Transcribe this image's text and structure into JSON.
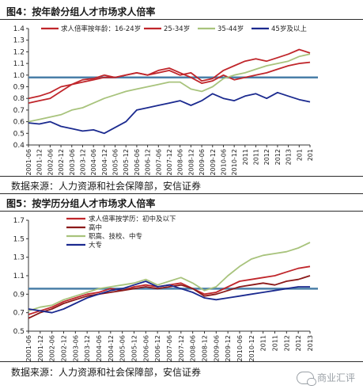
{
  "figures": [
    {
      "title": "图4：按年龄分组人才市场求人倍率",
      "source": "数据来源：人力资源和社会保障部，安信证券"
    },
    {
      "title": "图5：按学历分组人才市场求人倍率",
      "source": "数据来源：人力资源和社会保障部，安信证券"
    }
  ],
  "watermark": "商业汇评",
  "chart_data": [
    {
      "type": "line",
      "title": "图4：按年龄分组人才市场求人倍率",
      "xlabel": "",
      "ylabel": "",
      "ylim": [
        0.4,
        1.4
      ],
      "yticks": [
        "0.4",
        "0.5",
        "0.6",
        "0.7",
        "0.8",
        "0.9",
        "1.0",
        "1.1",
        "1.2",
        "1.3",
        "1.4"
      ],
      "xticks": [
        "2001-06",
        "2001-12",
        "2002-06",
        "2002-12",
        "2003-06",
        "2003-12",
        "2004-06",
        "2004-12",
        "2005-06",
        "2005-12",
        "2006-06",
        "2006-12",
        "2007-06",
        "2007-12",
        "2008-06",
        "2008-12",
        "2009-06",
        "2009-12",
        "2010-06",
        "2010-12",
        "2011",
        "2011",
        "2012",
        "2012",
        "2013",
        "201",
        "201"
      ],
      "reference_line": 0.98,
      "reference_color": "#4a7fa8",
      "legend_position": "top",
      "series": [
        {
          "name": "求人倍率按年龄：16-24岁",
          "color": "#c0262b",
          "values": [
            0.8,
            0.82,
            0.85,
            0.9,
            0.92,
            0.96,
            0.97,
            1.0,
            0.98,
            1.0,
            1.02,
            1.0,
            1.02,
            1.04,
            1.0,
            1.02,
            0.95,
            0.97,
            1.04,
            1.08,
            1.12,
            1.14,
            1.12,
            1.15,
            1.18,
            1.22,
            1.19
          ]
        },
        {
          "name": "25-34岁",
          "color": "#c0262b",
          "values": [
            0.76,
            0.78,
            0.8,
            0.86,
            0.92,
            0.94,
            0.96,
            0.98,
            0.98,
            1.0,
            1.02,
            1.0,
            1.04,
            1.06,
            1.02,
            0.98,
            0.93,
            0.95,
            1.0,
            0.96,
            0.98,
            1.0,
            1.02,
            1.05,
            1.08,
            1.1,
            1.11
          ]
        },
        {
          "name": "35-44岁",
          "color": "#a8c37c",
          "values": [
            0.6,
            0.62,
            0.64,
            0.66,
            0.7,
            0.72,
            0.76,
            0.8,
            0.83,
            0.86,
            0.88,
            0.9,
            0.92,
            0.94,
            0.94,
            0.88,
            0.86,
            0.9,
            0.97,
            1.0,
            1.02,
            1.05,
            1.08,
            1.1,
            1.12,
            1.16,
            1.18
          ]
        },
        {
          "name": "45岁及以上",
          "color": "#1b2a8f",
          "values": [
            0.59,
            0.58,
            0.6,
            0.56,
            0.54,
            0.52,
            0.53,
            0.5,
            0.55,
            0.6,
            0.7,
            0.72,
            0.74,
            0.76,
            0.78,
            0.74,
            0.78,
            0.84,
            0.8,
            0.78,
            0.82,
            0.84,
            0.8,
            0.85,
            0.82,
            0.79,
            0.77
          ]
        }
      ]
    },
    {
      "type": "line",
      "title": "图5：按学历分组人才市场求人倍率",
      "xlabel": "",
      "ylabel": "",
      "ylim": [
        0.5,
        1.7
      ],
      "yticks": [
        "0.5",
        "0.7",
        "0.9",
        "1.1",
        "1.3",
        "1.5",
        "1.7"
      ],
      "xticks": [
        "2001-06",
        "2001-12",
        "2002-06",
        "2002-12",
        "2003-06",
        "2003-12",
        "2004-06",
        "2004-12",
        "2005-06",
        "2005-12",
        "2006-06",
        "2006-12",
        "2007-06",
        "2007-12",
        "2008-06",
        "2008-12",
        "2009-06",
        "2009-12",
        "2010-06",
        "2010-12",
        "2011",
        "2011",
        "2012",
        "2012",
        "2013"
      ],
      "reference_line": 0.96,
      "reference_color": "#4a7fa8",
      "legend_position": "top",
      "series": [
        {
          "name": "求人倍率按学历：初中及以下",
          "color": "#c0262b",
          "values": [
            0.68,
            0.72,
            0.76,
            0.82,
            0.86,
            0.9,
            0.92,
            0.96,
            0.94,
            0.98,
            1.0,
            0.98,
            1.0,
            1.02,
            0.96,
            0.9,
            0.92,
            0.98,
            1.04,
            1.06,
            1.08,
            1.1,
            1.14,
            1.18,
            1.2
          ]
        },
        {
          "name": "高中",
          "color": "#8b1a1a",
          "values": [
            0.64,
            0.7,
            0.74,
            0.8,
            0.84,
            0.88,
            0.9,
            0.92,
            0.94,
            0.96,
            0.98,
            0.96,
            0.98,
            1.0,
            0.96,
            0.88,
            0.9,
            0.94,
            0.98,
            1.0,
            1.02,
            1.0,
            1.04,
            1.06,
            1.1
          ]
        },
        {
          "name": "职高、技校、中专",
          "color": "#a8c37c",
          "values": [
            0.72,
            0.76,
            0.78,
            0.84,
            0.88,
            0.92,
            0.96,
            0.98,
            1.0,
            1.02,
            1.06,
            1.0,
            1.04,
            1.08,
            1.02,
            0.94,
            0.98,
            1.1,
            1.2,
            1.28,
            1.32,
            1.34,
            1.36,
            1.4,
            1.46
          ]
        },
        {
          "name": "大专",
          "color": "#1b2a8f",
          "values": [
            0.74,
            0.72,
            0.7,
            0.74,
            0.8,
            0.86,
            0.9,
            0.94,
            0.96,
            1.0,
            1.04,
            0.98,
            1.0,
            0.96,
            0.92,
            0.86,
            0.84,
            0.86,
            0.88,
            0.9,
            0.92,
            0.94,
            0.96,
            0.98,
            0.98
          ]
        }
      ]
    }
  ]
}
